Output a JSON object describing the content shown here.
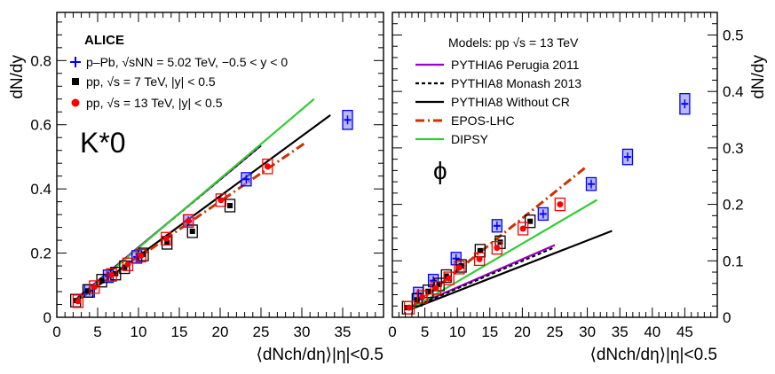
{
  "chart_data": [
    {
      "type": "scatter",
      "name": "left-panel",
      "particle_label": "K*0",
      "experiment_label": "ALICE",
      "ylabel": "dN/dy",
      "xlabel": "⟨dNch/dη⟩|η|<0.5",
      "xlim": [
        0,
        40
      ],
      "ylim": [
        0,
        0.95
      ],
      "xticks": [
        0,
        5,
        10,
        15,
        20,
        25,
        30,
        35
      ],
      "yticks": [
        0,
        0.2,
        0.4,
        0.6,
        0.8
      ],
      "data_legend": [
        {
          "label": "p–Pb, √sNN = 5.02 TeV, −0.5 < y < 0",
          "color": "#0000ff",
          "marker": "cross"
        },
        {
          "label": "pp, √s = 7 TeV, |y| < 0.5",
          "color": "#000000",
          "marker": "square"
        },
        {
          "label": "pp, √s = 13 TeV, |y| < 0.5",
          "color": "#ff0000",
          "marker": "circle"
        }
      ],
      "series": [
        {
          "name": "p–Pb 5.02 TeV",
          "color": "#0000ff",
          "fill": "#8080ff",
          "x": [
            4.0,
            6.3,
            9.8,
            16.1,
            23.2,
            35.6
          ],
          "y": [
            0.082,
            0.128,
            0.188,
            0.3,
            0.43,
            0.615
          ]
        },
        {
          "name": "pp 7 TeV",
          "color": "#000000",
          "fill": "#ffffff",
          "x": [
            2.3,
            3.8,
            5.5,
            7.2,
            8.3,
            10.6,
            13.5,
            16.6,
            21.2
          ],
          "y": [
            0.052,
            0.082,
            0.114,
            0.136,
            0.156,
            0.196,
            0.232,
            0.268,
            0.348
          ]
        },
        {
          "name": "pp 13 TeV",
          "color": "#ff0000",
          "fill": "#ffffff",
          "x": [
            2.6,
            4.6,
            6.7,
            8.7,
            10.3,
            13.4,
            16.1,
            20.1,
            25.8
          ],
          "y": [
            0.05,
            0.094,
            0.132,
            0.165,
            0.192,
            0.245,
            0.3,
            0.365,
            0.47
          ]
        }
      ],
      "models": [
        {
          "name": "PYTHIA6 Perugia 2011",
          "color": "#9900cc",
          "dash": "solid",
          "x": [
            2.5,
            25.0
          ],
          "y": [
            0.06,
            0.535
          ]
        },
        {
          "name": "PYTHIA8 Monash 2013",
          "color": "#000000",
          "dash": "short",
          "x": [
            2.5,
            25.0
          ],
          "y": [
            0.058,
            0.535
          ]
        },
        {
          "name": "PYTHIA8 Without CR",
          "color": "#000000",
          "dash": "solid",
          "x": [
            3.0,
            33.5
          ],
          "y": [
            0.06,
            0.63
          ]
        },
        {
          "name": "EPOS-LHC",
          "color": "#cc3300",
          "dash": "dashdot",
          "x": [
            2.5,
            30.5
          ],
          "y": [
            0.055,
            0.545
          ]
        },
        {
          "name": "DIPSY",
          "color": "#33cc33",
          "dash": "solid",
          "x": [
            3.0,
            31.5
          ],
          "y": [
            0.065,
            0.68
          ]
        }
      ]
    },
    {
      "type": "scatter",
      "name": "right-panel",
      "particle_label": "ϕ",
      "ylabel": "dN/dy",
      "xlabel": "⟨dNch/dη⟩|η|<0.5",
      "xlim": [
        0,
        50
      ],
      "ylim": [
        0,
        0.54
      ],
      "xticks": [
        0,
        5,
        10,
        15,
        20,
        25,
        30,
        35,
        40,
        45
      ],
      "yticks": [
        0,
        0.1,
        0.2,
        0.3,
        0.4,
        0.5
      ],
      "models_title": "Models: pp √s = 13 TeV",
      "model_legend": [
        {
          "label": "PYTHIA6 Perugia 2011",
          "color": "#9900cc",
          "dash": "solid"
        },
        {
          "label": "PYTHIA8 Monash 2013",
          "color": "#000000",
          "dash": "short"
        },
        {
          "label": "PYTHIA8 Without CR",
          "color": "#000000",
          "dash": "solid"
        },
        {
          "label": "EPOS-LHC",
          "color": "#cc3300",
          "dash": "dashdot"
        },
        {
          "label": "DIPSY",
          "color": "#33cc33",
          "dash": "solid"
        }
      ],
      "series": [
        {
          "name": "p–Pb 5.02 TeV",
          "color": "#0000ff",
          "fill": "#8080ff",
          "x": [
            4.0,
            6.3,
            9.8,
            16.1,
            23.2,
            30.6,
            36.2,
            45.0
          ],
          "y": [
            0.042,
            0.065,
            0.104,
            0.162,
            0.183,
            0.236,
            0.284,
            0.378
          ]
        },
        {
          "name": "pp 7 TeV",
          "color": "#000000",
          "fill": "#ffffff",
          "x": [
            2.3,
            3.8,
            5.5,
            7.2,
            8.3,
            10.6,
            13.5,
            16.6,
            21.2
          ],
          "y": [
            0.017,
            0.031,
            0.046,
            0.058,
            0.073,
            0.091,
            0.118,
            0.133,
            0.17
          ]
        },
        {
          "name": "pp 13 TeV",
          "color": "#ff0000",
          "fill": "#ffffff",
          "x": [
            2.6,
            4.6,
            6.7,
            8.7,
            10.3,
            13.4,
            16.1,
            20.1,
            25.8
          ],
          "y": [
            0.017,
            0.036,
            0.052,
            0.069,
            0.088,
            0.103,
            0.123,
            0.157,
            0.2
          ]
        }
      ],
      "models": [
        {
          "name": "PYTHIA6 Perugia 2011",
          "color": "#9900cc",
          "dash": "solid",
          "x": [
            3.0,
            25.0
          ],
          "y": [
            0.018,
            0.128
          ]
        },
        {
          "name": "PYTHIA8 Monash 2013",
          "color": "#000000",
          "dash": "short",
          "x": [
            3.0,
            25.0
          ],
          "y": [
            0.017,
            0.124
          ]
        },
        {
          "name": "PYTHIA8 Without CR",
          "color": "#000000",
          "dash": "solid",
          "x": [
            3.0,
            33.8
          ],
          "y": [
            0.015,
            0.153
          ]
        },
        {
          "name": "EPOS-LHC",
          "color": "#cc3300",
          "dash": "dashdot",
          "x": [
            3.0,
            30.0
          ],
          "y": [
            0.018,
            0.268
          ]
        },
        {
          "name": "DIPSY",
          "color": "#33cc33",
          "dash": "solid",
          "x": [
            3.0,
            31.5
          ],
          "y": [
            0.016,
            0.208
          ]
        }
      ]
    }
  ]
}
